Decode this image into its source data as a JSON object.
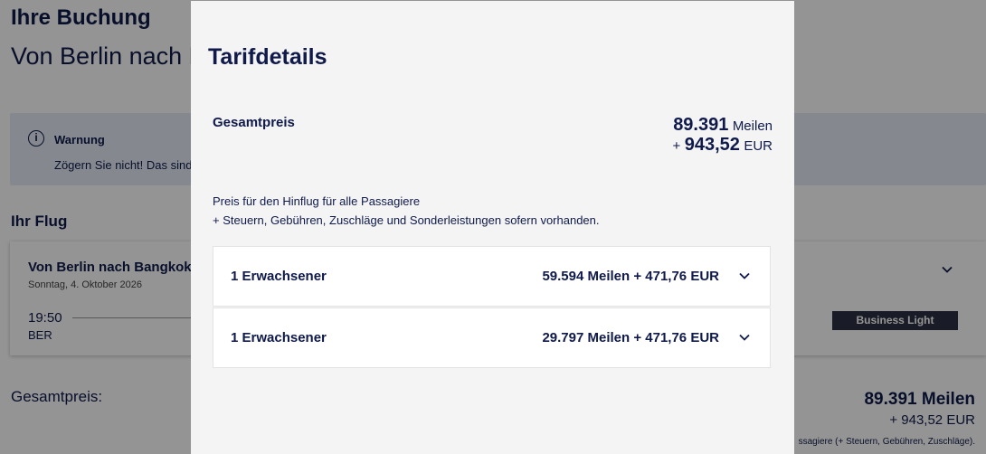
{
  "background": {
    "page_title": "Ihre Buchung",
    "route_title": "Von Berlin nach Bangkok",
    "warning": {
      "title": "Warnung",
      "text": "Zögern Sie nicht! Das sind"
    },
    "flight_section_title": "Ihr Flug",
    "flight": {
      "route": "Von Berlin nach Bangkok",
      "date": "Sonntag, 4. Oktober 2026",
      "departure_time": "19:50",
      "departure_airport": "BER",
      "fare_class": "Business Light"
    },
    "total": {
      "label": "Gesamtpreis:",
      "miles": "89.391 Meilen",
      "eur": "+ 943,52 EUR",
      "note": "ssagiere (+ Steuern, Gebühren, Zuschläge)."
    }
  },
  "modal": {
    "title": "Tarifdetails",
    "total_label": "Gesamtpreis",
    "total_miles_value": "89.391",
    "total_miles_unit": "Meilen",
    "total_eur_prefix": "+",
    "total_eur_value": "943,52",
    "total_eur_unit": "EUR",
    "description_line1": "Preis für den Hinflug für alle Passagiere",
    "description_line2": "+ Steuern, Gebühren, Zuschläge und Sonderleistungen sofern vorhanden.",
    "passengers": [
      {
        "label": "1 Erwachsener",
        "price": "59.594 Meilen + 471,76 EUR"
      },
      {
        "label": "1 Erwachsener",
        "price": "29.797 Meilen + 471,76 EUR"
      }
    ]
  },
  "colors": {
    "text": "#0f1a4a",
    "modal_bg": "#f4f4f4",
    "warning_bg": "#e5ecf6",
    "badge_bg": "#2c3142"
  },
  "icons": {
    "warning": "info-circle-icon",
    "expand": "chevron-down-icon"
  }
}
